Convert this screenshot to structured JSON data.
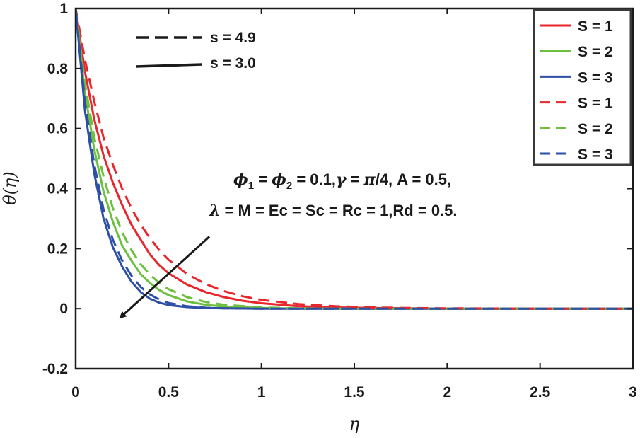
{
  "chart_data": {
    "type": "line",
    "xlabel": "η",
    "ylabel": "θ(η)",
    "xlim": [
      0,
      3
    ],
    "ylim": [
      -0.2,
      1
    ],
    "xticks": [
      0,
      0.5,
      1,
      1.5,
      2,
      2.5,
      3
    ],
    "xtick_labels": [
      "0",
      "0.5",
      "1",
      "1.5",
      "2",
      "2.5",
      "3"
    ],
    "yticks": [
      -0.2,
      0,
      0.2,
      0.4,
      0.6,
      0.8,
      1
    ],
    "ytick_labels": [
      "-0.2",
      "0",
      "0.2",
      "0.4",
      "0.6",
      "0.8",
      "1"
    ],
    "colors": {
      "S1": "#e8262b",
      "S2": "#6cbf3f",
      "S3": "#2e4fa6",
      "text": "#1a1a1a"
    },
    "series": [
      {
        "name": "S = 1",
        "s": 3.0,
        "dash": "solid",
        "color_key": "S1",
        "x": [
          0,
          0.05,
          0.1,
          0.15,
          0.2,
          0.25,
          0.3,
          0.35,
          0.4,
          0.45,
          0.5,
          0.6,
          0.7,
          0.8,
          0.9,
          1.0,
          1.2,
          1.4,
          1.6,
          1.8,
          2.0,
          2.5,
          3.0
        ],
        "y": [
          1,
          0.79,
          0.63,
          0.51,
          0.42,
          0.345,
          0.28,
          0.23,
          0.18,
          0.145,
          0.118,
          0.08,
          0.055,
          0.038,
          0.026,
          0.018,
          0.008,
          0.004,
          0.002,
          0.001,
          0,
          0,
          0
        ]
      },
      {
        "name": "S = 2",
        "s": 3.0,
        "dash": "solid",
        "color_key": "S2",
        "x": [
          0,
          0.05,
          0.1,
          0.15,
          0.2,
          0.25,
          0.3,
          0.35,
          0.4,
          0.45,
          0.5,
          0.6,
          0.7,
          0.8,
          1.0,
          1.2,
          1.5,
          2.0,
          2.5,
          3.0
        ],
        "y": [
          1,
          0.72,
          0.53,
          0.39,
          0.29,
          0.21,
          0.16,
          0.115,
          0.085,
          0.062,
          0.045,
          0.024,
          0.013,
          0.007,
          0.002,
          0,
          0,
          0,
          0,
          0
        ]
      },
      {
        "name": "S = 3",
        "s": 3.0,
        "dash": "solid",
        "color_key": "S3",
        "x": [
          0,
          0.05,
          0.1,
          0.15,
          0.2,
          0.25,
          0.3,
          0.35,
          0.4,
          0.45,
          0.5,
          0.6,
          0.7,
          0.8,
          1.0,
          1.5,
          2.0,
          2.5,
          3.0
        ],
        "y": [
          1,
          0.66,
          0.45,
          0.3,
          0.205,
          0.14,
          0.09,
          0.055,
          0.033,
          0.02,
          0.012,
          0.005,
          0.002,
          0.001,
          0,
          0,
          0,
          0,
          0
        ]
      },
      {
        "name": "S = 1",
        "s": 4.9,
        "dash": "dashed",
        "color_key": "S1",
        "x": [
          0,
          0.05,
          0.1,
          0.15,
          0.2,
          0.25,
          0.3,
          0.35,
          0.4,
          0.45,
          0.5,
          0.6,
          0.7,
          0.8,
          0.9,
          1.0,
          1.2,
          1.4,
          1.6,
          1.8,
          2.0,
          2.5,
          3.0
        ],
        "y": [
          1,
          0.83,
          0.69,
          0.57,
          0.48,
          0.4,
          0.335,
          0.28,
          0.235,
          0.195,
          0.163,
          0.115,
          0.082,
          0.058,
          0.041,
          0.029,
          0.015,
          0.008,
          0.004,
          0.002,
          0.001,
          0,
          0
        ]
      },
      {
        "name": "S = 2",
        "s": 4.9,
        "dash": "dashed",
        "color_key": "S2",
        "x": [
          0,
          0.05,
          0.1,
          0.15,
          0.2,
          0.25,
          0.3,
          0.35,
          0.4,
          0.45,
          0.5,
          0.6,
          0.7,
          0.8,
          1.0,
          1.2,
          1.5,
          2.0,
          2.5,
          3.0
        ],
        "y": [
          1,
          0.75,
          0.57,
          0.44,
          0.335,
          0.255,
          0.195,
          0.148,
          0.113,
          0.085,
          0.065,
          0.038,
          0.022,
          0.013,
          0.004,
          0.001,
          0,
          0,
          0,
          0
        ]
      },
      {
        "name": "S = 3",
        "s": 4.9,
        "dash": "dashed",
        "color_key": "S3",
        "x": [
          0,
          0.05,
          0.1,
          0.15,
          0.2,
          0.25,
          0.3,
          0.35,
          0.4,
          0.45,
          0.5,
          0.6,
          0.7,
          0.8,
          1.0,
          1.5,
          2.0,
          2.5,
          3.0
        ],
        "y": [
          1,
          0.69,
          0.48,
          0.33,
          0.23,
          0.16,
          0.11,
          0.072,
          0.047,
          0.03,
          0.019,
          0.008,
          0.003,
          0.001,
          0,
          0,
          0,
          0,
          0
        ]
      }
    ],
    "legend": {
      "placement": "top-right",
      "entries": [
        {
          "label": "S = 1",
          "color_key": "S1",
          "dash": "solid"
        },
        {
          "label": "S = 2",
          "color_key": "S2",
          "dash": "solid"
        },
        {
          "label": "S = 3",
          "color_key": "S3",
          "dash": "solid"
        },
        {
          "label": "S = 1",
          "color_key": "S1",
          "dash": "dashed"
        },
        {
          "label": "S = 2",
          "color_key": "S2",
          "dash": "dashed"
        },
        {
          "label": "S = 3",
          "color_key": "S3",
          "dash": "dashed"
        }
      ]
    },
    "style_key": [
      {
        "label": "s = 4.9",
        "dash": "dashed"
      },
      {
        "label": "s = 3.0",
        "dash": "solid"
      }
    ],
    "annotation": {
      "phi": "ϕ",
      "sub1": "1",
      "eq1": " = ",
      "sub2": "2",
      "eq2": " = 0.1,",
      "gamma": "γ",
      "eq3": " = ",
      "pi": "π",
      "eq4": "/4, A = 0.5,",
      "lambda": "λ",
      "line2_rest": " = M = Ec = Sc = Rc = 1,Rd = 0.5."
    },
    "arrow": {
      "from": [
        0.72,
        0.24
      ],
      "to": [
        0.24,
        -0.03
      ],
      "meaning": "increasing S"
    }
  }
}
